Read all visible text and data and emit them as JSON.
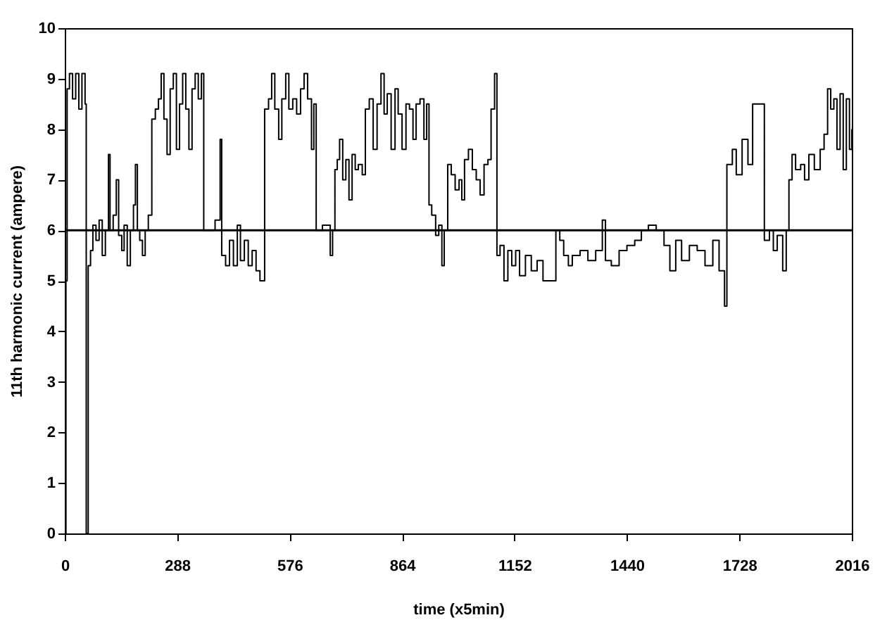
{
  "chart_data": {
    "type": "step",
    "xlabel": "time (x5min)",
    "ylabel": "11th harmonic current (ampere)",
    "xlim": [
      0,
      2016
    ],
    "xticks": [
      0,
      288,
      576,
      864,
      1152,
      1440,
      1728,
      2016
    ],
    "ylim": [
      0,
      10
    ],
    "yticks": [
      0,
      1,
      2,
      3,
      4,
      5,
      6,
      7,
      8,
      9,
      10
    ],
    "grid": false,
    "marker": "none",
    "line_style": "solid",
    "ref_lines": [
      {
        "axis": "y",
        "value": 6,
        "color": "#000000",
        "line_style": "solid"
      }
    ],
    "x": [
      0,
      3,
      6,
      12,
      20,
      28,
      36,
      44,
      52,
      55,
      60,
      66,
      72,
      80,
      88,
      96,
      104,
      112,
      116,
      124,
      132,
      138,
      146,
      152,
      160,
      168,
      176,
      181,
      186,
      192,
      199,
      206,
      214,
      223,
      232,
      240,
      247,
      254,
      262,
      270,
      278,
      286,
      294,
      302,
      310,
      318,
      326,
      334,
      342,
      350,
      356,
      372,
      385,
      398,
      402,
      412,
      422,
      432,
      442,
      450,
      460,
      470,
      480,
      490,
      500,
      512,
      522,
      530,
      538,
      548,
      556,
      566,
      574,
      584,
      594,
      604,
      613,
      622,
      632,
      638,
      644,
      660,
      680,
      686,
      692,
      698,
      704,
      712,
      720,
      728,
      736,
      744,
      752,
      762,
      770,
      780,
      790,
      800,
      810,
      818,
      826,
      836,
      846,
      854,
      864,
      874,
      883,
      892,
      900,
      910,
      920,
      927,
      933,
      940,
      950,
      958,
      966,
      972,
      981,
      990,
      1000,
      1010,
      1017,
      1024,
      1034,
      1044,
      1054,
      1064,
      1074,
      1084,
      1092,
      1101,
      1107,
      1115,
      1125,
      1135,
      1145,
      1155,
      1165,
      1180,
      1195,
      1210,
      1225,
      1240,
      1258,
      1268,
      1278,
      1290,
      1300,
      1320,
      1340,
      1360,
      1377,
      1385,
      1400,
      1420,
      1440,
      1460,
      1477,
      1495,
      1515,
      1535,
      1550,
      1565,
      1580,
      1600,
      1620,
      1640,
      1660,
      1676,
      1690,
      1696,
      1710,
      1720,
      1735,
      1750,
      1762,
      1792,
      1805,
      1815,
      1825,
      1839,
      1848,
      1855,
      1863,
      1872,
      1885,
      1895,
      1906,
      1920,
      1935,
      1945,
      1954,
      1962,
      1970,
      1978,
      1986,
      1994,
      2002,
      2010,
      2016
    ],
    "series": [
      {
        "color": "#000000",
        "values": [
          0,
          5,
          8.8,
          9.1,
          8.6,
          9.1,
          8.4,
          9.1,
          8.5,
          0,
          5.3,
          5.6,
          6.1,
          5.8,
          6.2,
          5.5,
          6.0,
          7.5,
          6.0,
          6.3,
          7.0,
          5.9,
          5.6,
          6.1,
          5.3,
          6.0,
          6.5,
          7.3,
          6.0,
          5.8,
          5.5,
          6.0,
          6.3,
          8.2,
          8.4,
          8.6,
          9.1,
          8.2,
          7.5,
          8.8,
          9.1,
          7.6,
          8.5,
          9.1,
          8.4,
          7.6,
          8.8,
          9.1,
          8.6,
          9.1,
          6.0,
          6.0,
          6.2,
          7.8,
          5.5,
          5.3,
          5.8,
          5.3,
          6.1,
          5.4,
          5.8,
          5.3,
          5.6,
          5.2,
          5.0,
          8.4,
          8.6,
          9.1,
          8.4,
          7.8,
          8.6,
          9.1,
          8.4,
          8.6,
          8.3,
          8.8,
          9.1,
          8.6,
          7.6,
          8.5,
          6.0,
          6.1,
          5.5,
          6.0,
          7.2,
          7.4,
          7.8,
          7.0,
          7.4,
          6.6,
          7.5,
          7.2,
          7.3,
          7.1,
          8.4,
          8.6,
          7.6,
          8.5,
          9.1,
          8.3,
          8.7,
          7.6,
          8.8,
          8.3,
          7.6,
          8.5,
          8.4,
          7.8,
          8.5,
          8.6,
          7.8,
          8.5,
          6.5,
          6.3,
          5.9,
          6.1,
          5.3,
          6.0,
          7.3,
          7.1,
          6.8,
          7.0,
          6.6,
          7.4,
          7.6,
          7.2,
          7.0,
          6.7,
          7.3,
          7.4,
          8.4,
          9.1,
          5.5,
          5.7,
          5.0,
          5.6,
          5.3,
          5.6,
          5.1,
          5.5,
          5.2,
          5.4,
          5.0,
          5.0,
          6.0,
          5.8,
          5.5,
          5.3,
          5.5,
          5.6,
          5.4,
          5.6,
          6.2,
          5.4,
          5.3,
          5.6,
          5.7,
          5.8,
          6.0,
          6.1,
          6.0,
          5.7,
          5.2,
          5.8,
          5.4,
          5.7,
          5.6,
          5.3,
          5.8,
          5.2,
          4.5,
          7.3,
          7.6,
          7.1,
          7.8,
          7.3,
          8.5,
          5.8,
          6.0,
          5.6,
          5.9,
          5.2,
          6.0,
          7.0,
          7.5,
          7.2,
          7.3,
          7.0,
          7.5,
          7.2,
          7.6,
          7.9,
          8.8,
          8.4,
          8.6,
          7.6,
          8.7,
          7.2,
          8.6,
          7.6,
          8.0
        ]
      }
    ]
  }
}
